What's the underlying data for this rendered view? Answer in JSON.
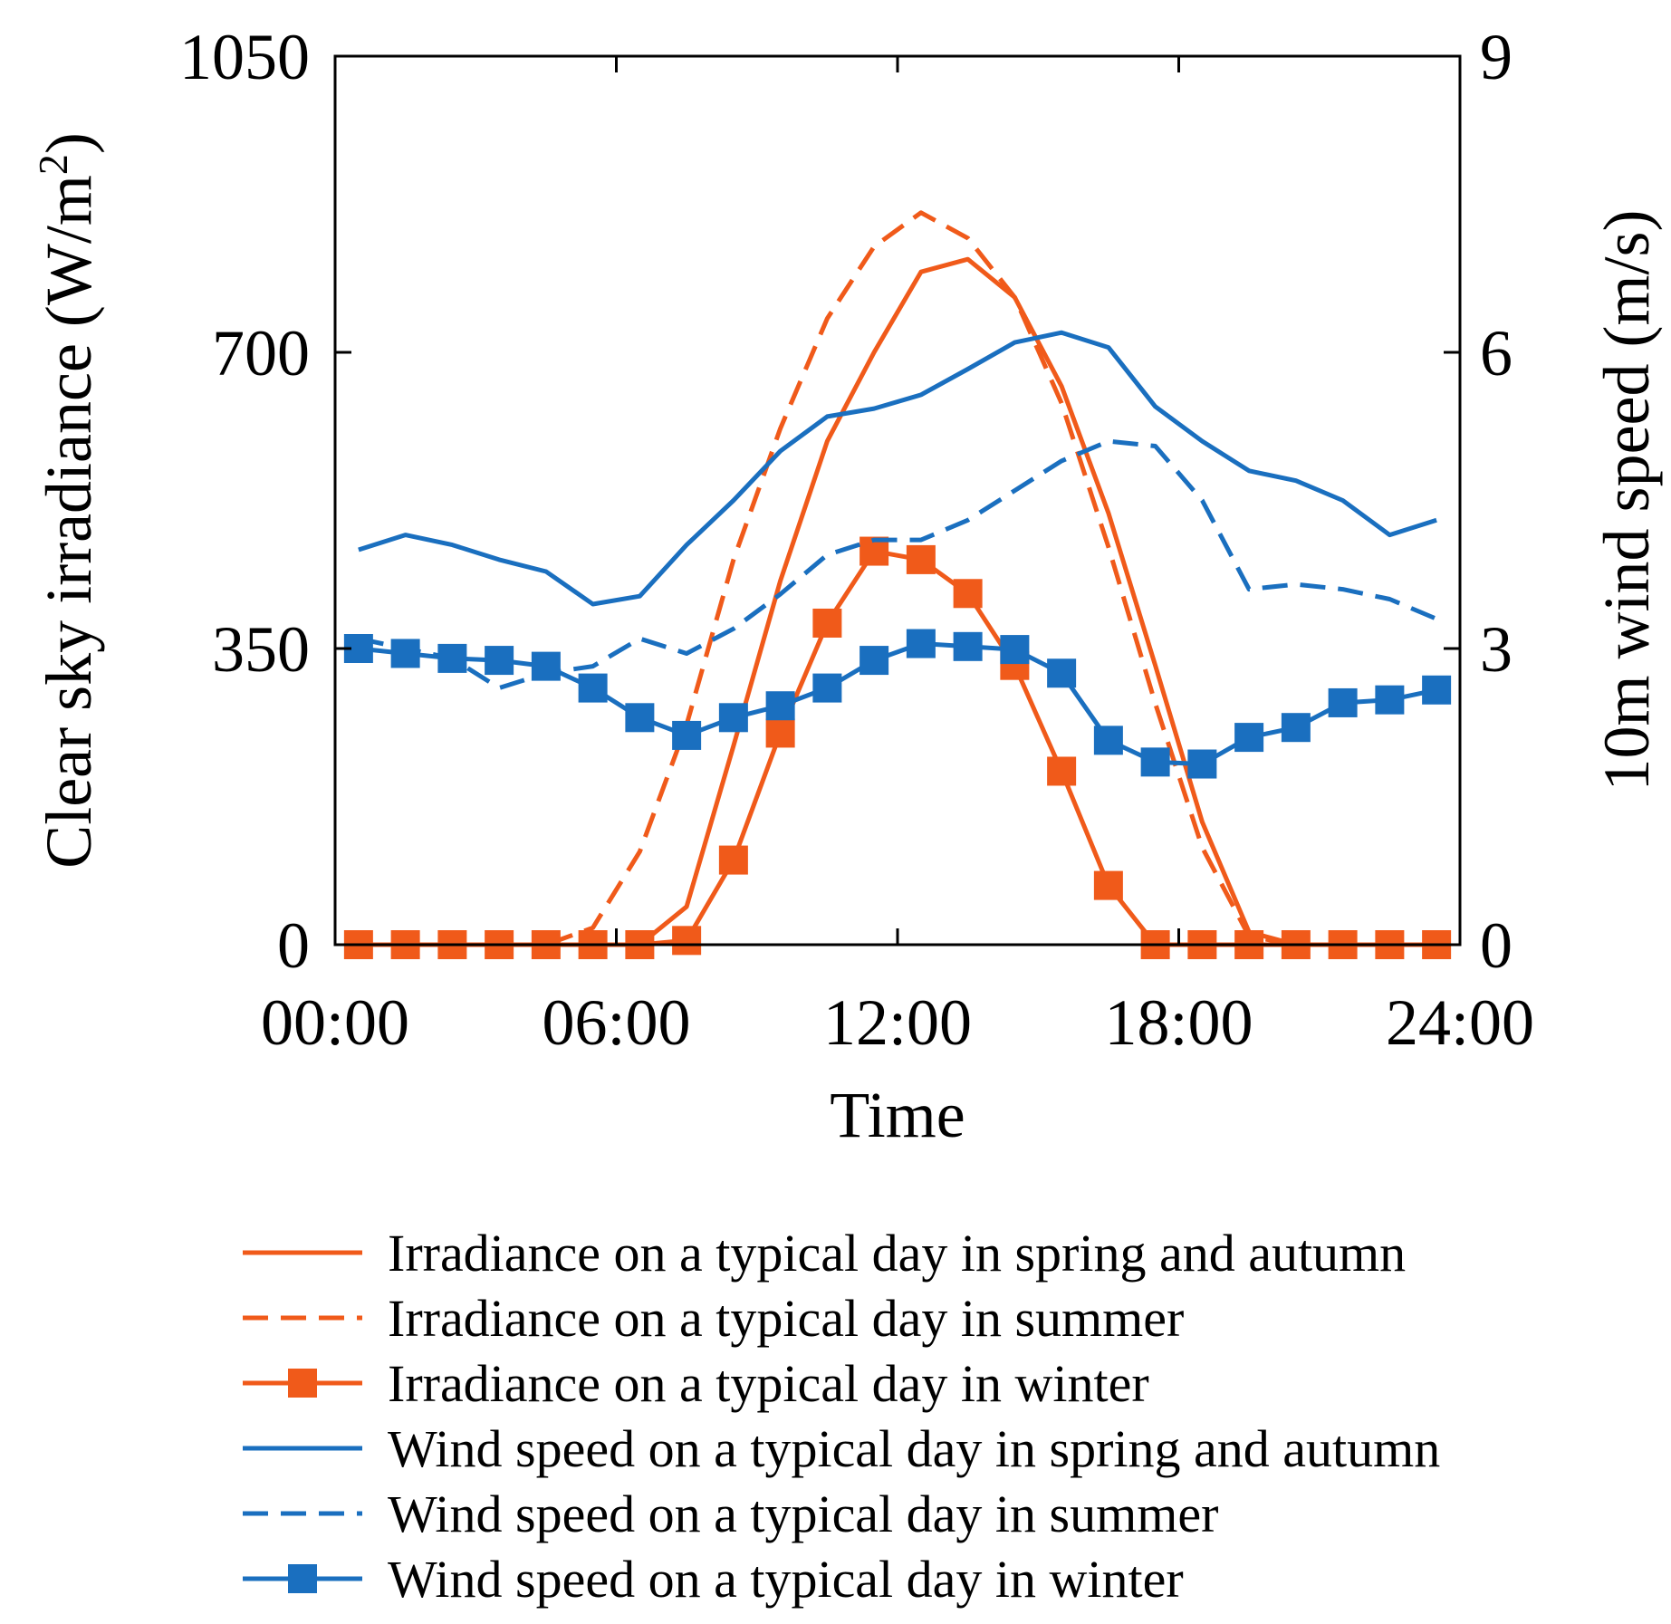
{
  "chart_data": {
    "type": "line",
    "title": "",
    "xlabel": "Time",
    "ylabel": "Clear sky irradiance (W/m2)",
    "ylabel_parts": {
      "before": "Clear sky irradiance (W/m",
      "sup": "2",
      "after": ")"
    },
    "y2label": "10m wind speed (m/s)",
    "xlim": [
      0,
      24
    ],
    "ylim": [
      0,
      1050
    ],
    "y2lim": [
      0,
      9
    ],
    "x_ticks": [
      0,
      6,
      12,
      18,
      24
    ],
    "x_tick_labels": [
      "00:00",
      "06:00",
      "12:00",
      "18:00",
      "24:00"
    ],
    "y_ticks": [
      0,
      350,
      700,
      1050
    ],
    "y_tick_labels": [
      "0",
      "350",
      "700",
      "1050"
    ],
    "y2_ticks": [
      0,
      3,
      6,
      9
    ],
    "y2_tick_labels": [
      "0",
      "3",
      "6",
      "9"
    ],
    "grid": false,
    "legend_position": "below",
    "x": [
      0.5,
      1.5,
      2.5,
      3.5,
      4.5,
      5.5,
      6.5,
      7.5,
      8.5,
      9.5,
      10.5,
      11.5,
      12.5,
      13.5,
      14.5,
      15.5,
      16.5,
      17.5,
      18.5,
      19.5,
      20.5,
      21.5,
      22.5,
      23.5
    ],
    "series": [
      {
        "name": "Irradiance on a typical day in spring and autumn",
        "axis": "left",
        "color": "#f05a1a",
        "style": "solid",
        "marker": "none",
        "values": [
          0,
          0,
          0,
          0,
          0,
          0,
          0,
          45,
          235,
          430,
          595,
          700,
          795,
          810,
          765,
          660,
          510,
          330,
          145,
          15,
          0,
          0,
          0,
          0
        ]
      },
      {
        "name": "Irradiance on a typical day in summer",
        "axis": "left",
        "color": "#f05a1a",
        "style": "dashed",
        "marker": "none",
        "values": [
          0,
          0,
          0,
          0,
          0,
          20,
          110,
          260,
          455,
          610,
          740,
          825,
          865,
          835,
          765,
          640,
          470,
          285,
          115,
          10,
          0,
          0,
          0,
          0
        ]
      },
      {
        "name": "Irradiance on a typical day in winter",
        "axis": "left",
        "color": "#f05a1a",
        "style": "solid",
        "marker": "square",
        "values": [
          0,
          0,
          0,
          0,
          0,
          0,
          0,
          5,
          100,
          250,
          380,
          465,
          455,
          415,
          330,
          205,
          70,
          0,
          0,
          0,
          0,
          0,
          0,
          0
        ]
      },
      {
        "name": "Wind speed on a typical day in spring and autumn",
        "axis": "right",
        "color": "#1a6fbf",
        "style": "solid",
        "marker": "none",
        "values": [
          4.0,
          4.15,
          4.05,
          3.9,
          3.78,
          3.45,
          3.53,
          4.05,
          4.5,
          5.0,
          5.35,
          5.43,
          5.57,
          5.83,
          6.1,
          6.2,
          6.05,
          5.45,
          5.1,
          4.8,
          4.7,
          4.5,
          4.15,
          4.3
        ]
      },
      {
        "name": "Wind speed on a typical day in summer",
        "axis": "right",
        "color": "#1a6fbf",
        "style": "dashed",
        "marker": "none",
        "values": [
          3.1,
          3.0,
          2.9,
          2.6,
          2.75,
          2.82,
          3.1,
          2.95,
          3.2,
          3.55,
          3.95,
          4.1,
          4.1,
          4.3,
          4.6,
          4.9,
          5.1,
          5.05,
          4.5,
          3.6,
          3.65,
          3.6,
          3.5,
          3.3
        ]
      },
      {
        "name": "Wind speed on a typical day in winter",
        "axis": "right",
        "color": "#1a6fbf",
        "style": "solid",
        "marker": "square",
        "values": [
          3.0,
          2.95,
          2.9,
          2.88,
          2.82,
          2.6,
          2.3,
          2.12,
          2.3,
          2.42,
          2.6,
          2.88,
          3.05,
          3.02,
          2.99,
          2.75,
          2.07,
          1.85,
          1.83,
          2.1,
          2.2,
          2.45,
          2.48,
          2.58
        ]
      }
    ]
  }
}
